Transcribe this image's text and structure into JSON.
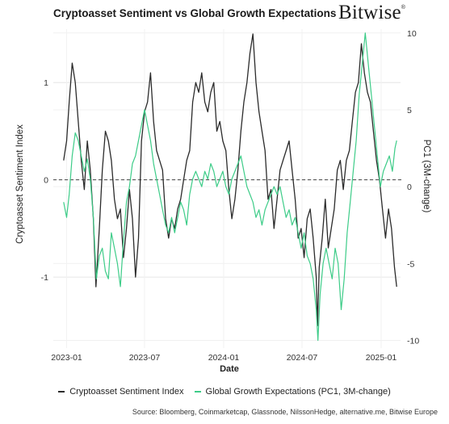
{
  "title": "Cryptoasset Sentiment vs Global Growth Expectations",
  "brand": "Bitwise",
  "brand_mark": "®",
  "source": "Source: Bloomberg, Coinmarketcap, Glassnode, NilssonHedge, alternative.me, Bitwise Europe",
  "chart_data": {
    "type": "line",
    "xlabel": "Date",
    "ylabel_left": "Cryptoasset Sentiment Index",
    "ylabel_right": "PC1 (3M-change)",
    "x_ticks": [
      "2023-01",
      "2023-07",
      "2024-01",
      "2024-07",
      "2025-01"
    ],
    "y_left_ticks": [
      "1",
      "0",
      "-1"
    ],
    "y_right_ticks": [
      "10",
      "5",
      "0",
      "-5",
      "-10"
    ],
    "ylim_left": [
      -1.73,
      1.55
    ],
    "ylim_right": [
      -10.5,
      10.25
    ],
    "xlim": [
      "2022-12-01",
      "2025-02-15"
    ],
    "reference_line": {
      "axis": "left",
      "value": 0,
      "style": "dashed"
    },
    "grid": "horizontal",
    "legend_position": "bottom",
    "series": [
      {
        "name": "Cryptoasset Sentiment Index",
        "axis": "left",
        "color": "#2b2b2b",
        "points": [
          [
            "2022-12-25",
            0.2
          ],
          [
            "2023-01-01",
            0.4
          ],
          [
            "2023-01-07",
            0.8
          ],
          [
            "2023-01-14",
            1.2
          ],
          [
            "2023-01-21",
            1.0
          ],
          [
            "2023-01-28",
            0.6
          ],
          [
            "2023-02-04",
            0.2
          ],
          [
            "2023-02-11",
            -0.1
          ],
          [
            "2023-02-18",
            0.4
          ],
          [
            "2023-02-25",
            0.1
          ],
          [
            "2023-03-04",
            -0.4
          ],
          [
            "2023-03-10",
            -1.1
          ],
          [
            "2023-03-18",
            -0.5
          ],
          [
            "2023-03-25",
            0.1
          ],
          [
            "2023-04-01",
            0.5
          ],
          [
            "2023-04-08",
            0.4
          ],
          [
            "2023-04-15",
            0.2
          ],
          [
            "2023-04-22",
            -0.2
          ],
          [
            "2023-04-29",
            -0.4
          ],
          [
            "2023-05-06",
            -0.3
          ],
          [
            "2023-05-13",
            -0.8
          ],
          [
            "2023-05-20",
            -0.5
          ],
          [
            "2023-05-27",
            -0.1
          ],
          [
            "2023-06-03",
            -0.4
          ],
          [
            "2023-06-10",
            -1.0
          ],
          [
            "2023-06-17",
            -0.6
          ],
          [
            "2023-06-24",
            0.4
          ],
          [
            "2023-07-01",
            0.7
          ],
          [
            "2023-07-08",
            0.8
          ],
          [
            "2023-07-15",
            1.1
          ],
          [
            "2023-07-22",
            0.6
          ],
          [
            "2023-07-29",
            0.3
          ],
          [
            "2023-08-05",
            0.2
          ],
          [
            "2023-08-12",
            0.1
          ],
          [
            "2023-08-19",
            -0.4
          ],
          [
            "2023-08-26",
            -0.6
          ],
          [
            "2023-09-02",
            -0.4
          ],
          [
            "2023-09-09",
            -0.5
          ],
          [
            "2023-09-16",
            -0.3
          ],
          [
            "2023-09-23",
            -0.2
          ],
          [
            "2023-09-30",
            0.0
          ],
          [
            "2023-10-07",
            0.2
          ],
          [
            "2023-10-14",
            0.3
          ],
          [
            "2023-10-21",
            0.8
          ],
          [
            "2023-10-28",
            1.0
          ],
          [
            "2023-11-04",
            0.9
          ],
          [
            "2023-11-11",
            1.1
          ],
          [
            "2023-11-18",
            0.8
          ],
          [
            "2023-11-25",
            0.7
          ],
          [
            "2023-12-02",
            0.9
          ],
          [
            "2023-12-09",
            1.0
          ],
          [
            "2023-12-16",
            0.5
          ],
          [
            "2023-12-23",
            0.6
          ],
          [
            "2023-12-30",
            0.4
          ],
          [
            "2024-01-06",
            0.3
          ],
          [
            "2024-01-13",
            -0.1
          ],
          [
            "2024-01-20",
            -0.4
          ],
          [
            "2024-01-27",
            -0.2
          ],
          [
            "2024-02-03",
            0.1
          ],
          [
            "2024-02-10",
            0.5
          ],
          [
            "2024-02-17",
            0.8
          ],
          [
            "2024-02-24",
            1.0
          ],
          [
            "2024-03-02",
            1.3
          ],
          [
            "2024-03-09",
            1.5
          ],
          [
            "2024-03-16",
            1.0
          ],
          [
            "2024-03-23",
            0.7
          ],
          [
            "2024-03-30",
            0.5
          ],
          [
            "2024-04-06",
            0.3
          ],
          [
            "2024-04-13",
            -0.2
          ],
          [
            "2024-04-20",
            -0.1
          ],
          [
            "2024-04-27",
            -0.5
          ],
          [
            "2024-05-04",
            -0.2
          ],
          [
            "2024-05-11",
            0.1
          ],
          [
            "2024-05-18",
            0.2
          ],
          [
            "2024-05-25",
            0.3
          ],
          [
            "2024-06-01",
            0.4
          ],
          [
            "2024-06-08",
            0.1
          ],
          [
            "2024-06-15",
            -0.2
          ],
          [
            "2024-06-22",
            -0.6
          ],
          [
            "2024-06-29",
            -0.5
          ],
          [
            "2024-07-06",
            -0.8
          ],
          [
            "2024-07-13",
            -0.4
          ],
          [
            "2024-07-20",
            -0.3
          ],
          [
            "2024-07-27",
            -0.6
          ],
          [
            "2024-08-03",
            -1.0
          ],
          [
            "2024-08-06",
            -1.5
          ],
          [
            "2024-08-10",
            -0.9
          ],
          [
            "2024-08-17",
            -0.6
          ],
          [
            "2024-08-24",
            -0.2
          ],
          [
            "2024-08-31",
            -0.7
          ],
          [
            "2024-09-07",
            -0.5
          ],
          [
            "2024-09-14",
            -0.3
          ],
          [
            "2024-09-21",
            0.1
          ],
          [
            "2024-09-28",
            0.2
          ],
          [
            "2024-10-05",
            -0.1
          ],
          [
            "2024-10-12",
            0.2
          ],
          [
            "2024-10-19",
            0.3
          ],
          [
            "2024-10-26",
            0.6
          ],
          [
            "2024-11-02",
            0.9
          ],
          [
            "2024-11-09",
            1.0
          ],
          [
            "2024-11-16",
            1.4
          ],
          [
            "2024-11-23",
            1.1
          ],
          [
            "2024-11-30",
            0.9
          ],
          [
            "2024-12-07",
            0.8
          ],
          [
            "2024-12-14",
            0.5
          ],
          [
            "2024-12-21",
            0.2
          ],
          [
            "2024-12-28",
            0.0
          ],
          [
            "2025-01-04",
            -0.3
          ],
          [
            "2025-01-11",
            -0.6
          ],
          [
            "2025-01-18",
            -0.3
          ],
          [
            "2025-01-25",
            -0.5
          ],
          [
            "2025-02-01",
            -0.9
          ],
          [
            "2025-02-06",
            -1.1
          ]
        ]
      },
      {
        "name": "Global Growth Expectations (PC1, 3M-change)",
        "axis": "right",
        "color": "#3dcc88",
        "points": [
          [
            "2022-12-25",
            -1.0
          ],
          [
            "2023-01-01",
            -2.0
          ],
          [
            "2023-01-07",
            -0.5
          ],
          [
            "2023-01-14",
            2.0
          ],
          [
            "2023-01-21",
            3.5
          ],
          [
            "2023-01-28",
            3.0
          ],
          [
            "2023-02-04",
            2.0
          ],
          [
            "2023-02-11",
            1.0
          ],
          [
            "2023-02-18",
            1.8
          ],
          [
            "2023-02-25",
            0.5
          ],
          [
            "2023-03-04",
            -2.0
          ],
          [
            "2023-03-11",
            -6.0
          ],
          [
            "2023-03-18",
            -4.5
          ],
          [
            "2023-03-25",
            -4.0
          ],
          [
            "2023-04-01",
            -5.5
          ],
          [
            "2023-04-08",
            -6.0
          ],
          [
            "2023-04-15",
            -3.0
          ],
          [
            "2023-04-22",
            -4.0
          ],
          [
            "2023-04-29",
            -5.0
          ],
          [
            "2023-05-06",
            -6.5
          ],
          [
            "2023-05-13",
            -3.5
          ],
          [
            "2023-05-20",
            -1.0
          ],
          [
            "2023-05-27",
            0.0
          ],
          [
            "2023-06-03",
            1.5
          ],
          [
            "2023-06-10",
            2.0
          ],
          [
            "2023-06-17",
            3.0
          ],
          [
            "2023-06-24",
            4.0
          ],
          [
            "2023-07-01",
            5.0
          ],
          [
            "2023-07-08",
            4.0
          ],
          [
            "2023-07-15",
            3.0
          ],
          [
            "2023-07-22",
            1.5
          ],
          [
            "2023-07-29",
            0.5
          ],
          [
            "2023-08-05",
            -0.5
          ],
          [
            "2023-08-12",
            -1.5
          ],
          [
            "2023-08-19",
            -2.5
          ],
          [
            "2023-08-26",
            -3.0
          ],
          [
            "2023-09-02",
            -2.0
          ],
          [
            "2023-09-09",
            -3.0
          ],
          [
            "2023-09-16",
            -2.0
          ],
          [
            "2023-09-23",
            -1.0
          ],
          [
            "2023-09-30",
            -1.5
          ],
          [
            "2023-10-07",
            -2.5
          ],
          [
            "2023-10-14",
            -0.5
          ],
          [
            "2023-10-21",
            0.5
          ],
          [
            "2023-10-28",
            1.0
          ],
          [
            "2023-11-04",
            0.5
          ],
          [
            "2023-11-11",
            0.0
          ],
          [
            "2023-11-18",
            1.0
          ],
          [
            "2023-11-25",
            0.5
          ],
          [
            "2023-12-02",
            1.5
          ],
          [
            "2023-12-09",
            1.0
          ],
          [
            "2023-12-16",
            0.0
          ],
          [
            "2023-12-23",
            0.5
          ],
          [
            "2023-12-30",
            1.0
          ],
          [
            "2024-01-06",
            0.0
          ],
          [
            "2024-01-13",
            -0.5
          ],
          [
            "2024-01-20",
            0.5
          ],
          [
            "2024-01-27",
            1.0
          ],
          [
            "2024-02-03",
            1.5
          ],
          [
            "2024-02-10",
            2.0
          ],
          [
            "2024-02-17",
            1.0
          ],
          [
            "2024-02-24",
            0.0
          ],
          [
            "2024-03-02",
            -0.5
          ],
          [
            "2024-03-09",
            -1.0
          ],
          [
            "2024-03-16",
            -2.0
          ],
          [
            "2024-03-23",
            -1.5
          ],
          [
            "2024-03-30",
            -2.5
          ],
          [
            "2024-04-06",
            -1.5
          ],
          [
            "2024-04-13",
            -1.0
          ],
          [
            "2024-04-20",
            -0.5
          ],
          [
            "2024-04-27",
            0.0
          ],
          [
            "2024-05-04",
            -0.5
          ],
          [
            "2024-05-11",
            0.0
          ],
          [
            "2024-05-18",
            -1.0
          ],
          [
            "2024-05-25",
            -2.0
          ],
          [
            "2024-06-01",
            -1.5
          ],
          [
            "2024-06-08",
            -2.5
          ],
          [
            "2024-06-15",
            -2.0
          ],
          [
            "2024-06-22",
            -3.0
          ],
          [
            "2024-06-29",
            -4.0
          ],
          [
            "2024-07-06",
            -3.0
          ],
          [
            "2024-07-13",
            -4.5
          ],
          [
            "2024-07-20",
            -5.0
          ],
          [
            "2024-07-27",
            -6.0
          ],
          [
            "2024-08-03",
            -8.0
          ],
          [
            "2024-08-07",
            -10.0
          ],
          [
            "2024-08-12",
            -7.0
          ],
          [
            "2024-08-19",
            -5.0
          ],
          [
            "2024-08-26",
            -4.0
          ],
          [
            "2024-09-02",
            -5.0
          ],
          [
            "2024-09-09",
            -6.0
          ],
          [
            "2024-09-16",
            -4.0
          ],
          [
            "2024-09-23",
            -5.0
          ],
          [
            "2024-09-30",
            -8.0
          ],
          [
            "2024-10-07",
            -6.0
          ],
          [
            "2024-10-14",
            -3.0
          ],
          [
            "2024-10-21",
            -1.0
          ],
          [
            "2024-10-28",
            1.0
          ],
          [
            "2024-11-04",
            3.0
          ],
          [
            "2024-11-11",
            6.0
          ],
          [
            "2024-11-18",
            8.0
          ],
          [
            "2024-11-25",
            10.0
          ],
          [
            "2024-12-02",
            8.0
          ],
          [
            "2024-12-09",
            6.0
          ],
          [
            "2024-12-16",
            4.0
          ],
          [
            "2024-12-23",
            2.0
          ],
          [
            "2024-12-30",
            0.0
          ],
          [
            "2025-01-06",
            1.0
          ],
          [
            "2025-01-13",
            1.5
          ],
          [
            "2025-01-20",
            2.0
          ],
          [
            "2025-01-27",
            1.0
          ],
          [
            "2025-02-02",
            2.5
          ],
          [
            "2025-02-06",
            3.0
          ]
        ]
      }
    ]
  }
}
